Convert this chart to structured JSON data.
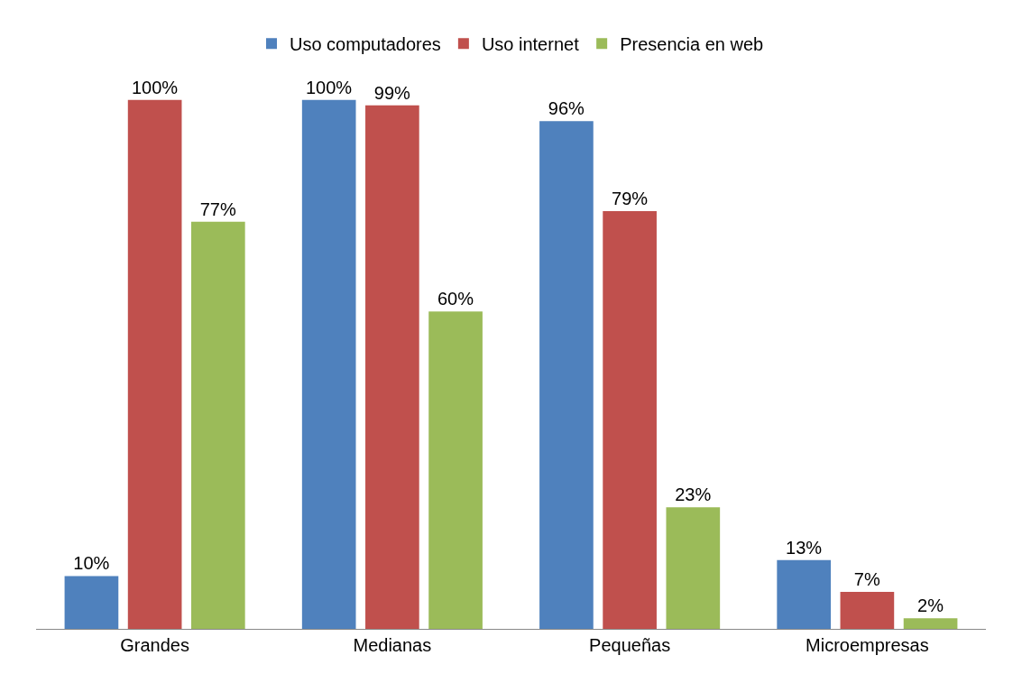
{
  "chart_data": {
    "type": "bar",
    "categories": [
      "Grandes",
      "Medianas",
      "Pequeñas",
      "Microempresas"
    ],
    "series": [
      {
        "name": "Uso computadores",
        "color": "#4f81bd",
        "values": [
          10,
          100,
          96,
          13
        ],
        "value_labels": [
          "10%",
          "100%",
          "96%",
          "13%"
        ]
      },
      {
        "name": "Uso internet",
        "color": "#c0504d",
        "values": [
          100,
          99,
          79,
          7
        ],
        "value_labels": [
          "100%",
          "99%",
          "79%",
          "7%"
        ]
      },
      {
        "name": "Presencia en web",
        "color": "#9bbb59",
        "values": [
          77,
          60,
          23,
          2
        ],
        "value_labels": [
          "77%",
          "60%",
          "23%",
          "2%"
        ]
      }
    ],
    "tick_labels": "x",
    "legend": "top"
  }
}
